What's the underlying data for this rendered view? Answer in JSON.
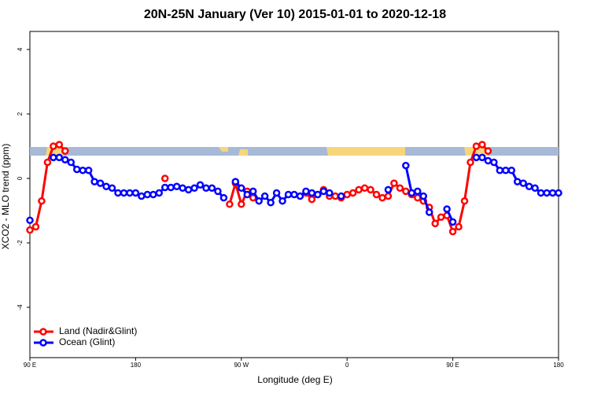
{
  "chart_data": {
    "type": "line",
    "title": "20N-25N January (Ver 10)   2015-01-01 to 2020-12-18",
    "x_label": "Longitude (deg E)",
    "y_label": "XCO2 - MLO trend (ppm)",
    "x": [
      90,
      95,
      100,
      105,
      110,
      115,
      120,
      125,
      130,
      135,
      140,
      145,
      150,
      155,
      160,
      165,
      170,
      175,
      180,
      185,
      190,
      195,
      200,
      205,
      210,
      215,
      220,
      225,
      230,
      235,
      240,
      245,
      250,
      255,
      260,
      265,
      270,
      275,
      280,
      285,
      290,
      295,
      300,
      305,
      310,
      315,
      320,
      325,
      330,
      335,
      340,
      345,
      350,
      355,
      360,
      365,
      370,
      375,
      380,
      385,
      390,
      395,
      400,
      405,
      410,
      415,
      420,
      425,
      430,
      435,
      440,
      445,
      450,
      455,
      460,
      465,
      470,
      475,
      480,
      485,
      490,
      495,
      500,
      505,
      510,
      515,
      520,
      525,
      530,
      535,
      540
    ],
    "series": [
      {
        "name": "Land (Nadir&Glint)",
        "color": "#ff0000",
        "values": [
          -1.6,
          -1.5,
          -0.7,
          0.5,
          1.0,
          1.05,
          0.85,
          null,
          null,
          null,
          null,
          null,
          null,
          null,
          null,
          null,
          null,
          null,
          null,
          null,
          null,
          null,
          null,
          0.0,
          null,
          null,
          null,
          null,
          null,
          null,
          null,
          null,
          null,
          null,
          -0.8,
          -0.15,
          -0.8,
          -0.4,
          -0.6,
          null,
          null,
          null,
          null,
          null,
          null,
          null,
          null,
          -0.45,
          -0.65,
          -0.5,
          -0.35,
          -0.55,
          -0.55,
          -0.6,
          -0.5,
          -0.45,
          -0.35,
          -0.3,
          -0.35,
          -0.5,
          -0.6,
          -0.55,
          -0.15,
          -0.3,
          -0.4,
          -0.5,
          -0.6,
          -0.7,
          -0.9,
          -1.4,
          -1.2,
          -1.15,
          -1.65,
          -1.5,
          -0.7,
          0.5,
          1.0,
          1.05,
          0.85,
          null,
          null,
          null,
          null,
          null,
          null,
          null,
          null,
          null,
          null,
          null,
          null
        ]
      },
      {
        "name": "Ocean (Glint)",
        "color": "#0000ff",
        "values": [
          -1.3,
          null,
          null,
          null,
          0.65,
          0.65,
          0.58,
          0.5,
          0.28,
          0.25,
          0.25,
          -0.1,
          -0.15,
          -0.25,
          -0.3,
          -0.45,
          -0.45,
          -0.45,
          -0.45,
          -0.55,
          -0.5,
          -0.5,
          -0.45,
          -0.28,
          -0.28,
          -0.25,
          -0.3,
          -0.35,
          -0.3,
          -0.2,
          -0.3,
          -0.3,
          -0.4,
          -0.6,
          null,
          -0.1,
          -0.3,
          -0.5,
          -0.4,
          -0.7,
          -0.55,
          -0.75,
          -0.45,
          -0.7,
          -0.5,
          -0.5,
          -0.55,
          -0.4,
          -0.45,
          -0.5,
          -0.4,
          -0.45,
          null,
          -0.55,
          null,
          null,
          null,
          null,
          null,
          null,
          null,
          -0.35,
          null,
          null,
          0.4,
          -0.45,
          -0.4,
          -0.55,
          -1.05,
          null,
          null,
          -0.95,
          -1.35,
          null,
          null,
          null,
          0.65,
          0.65,
          0.55,
          0.5,
          0.25,
          0.25,
          0.25,
          -0.1,
          -0.15,
          -0.25,
          -0.3,
          -0.45,
          -0.45,
          -0.45,
          -0.45
        ]
      }
    ],
    "xlim": [
      90,
      540
    ],
    "xticks": [
      {
        "value": 90,
        "label": "90 E"
      },
      180,
      {
        "value": 270,
        "label": "90 W"
      },
      {
        "value": 360,
        "label": "0"
      },
      {
        "value": 450,
        "label": "90 E"
      },
      {
        "value": 540,
        "label": "180"
      }
    ],
    "ylim": [
      -5.56,
      4.56
    ],
    "yticks": [
      -4,
      -2,
      0,
      2,
      4
    ],
    "legend": "bottom-left"
  }
}
